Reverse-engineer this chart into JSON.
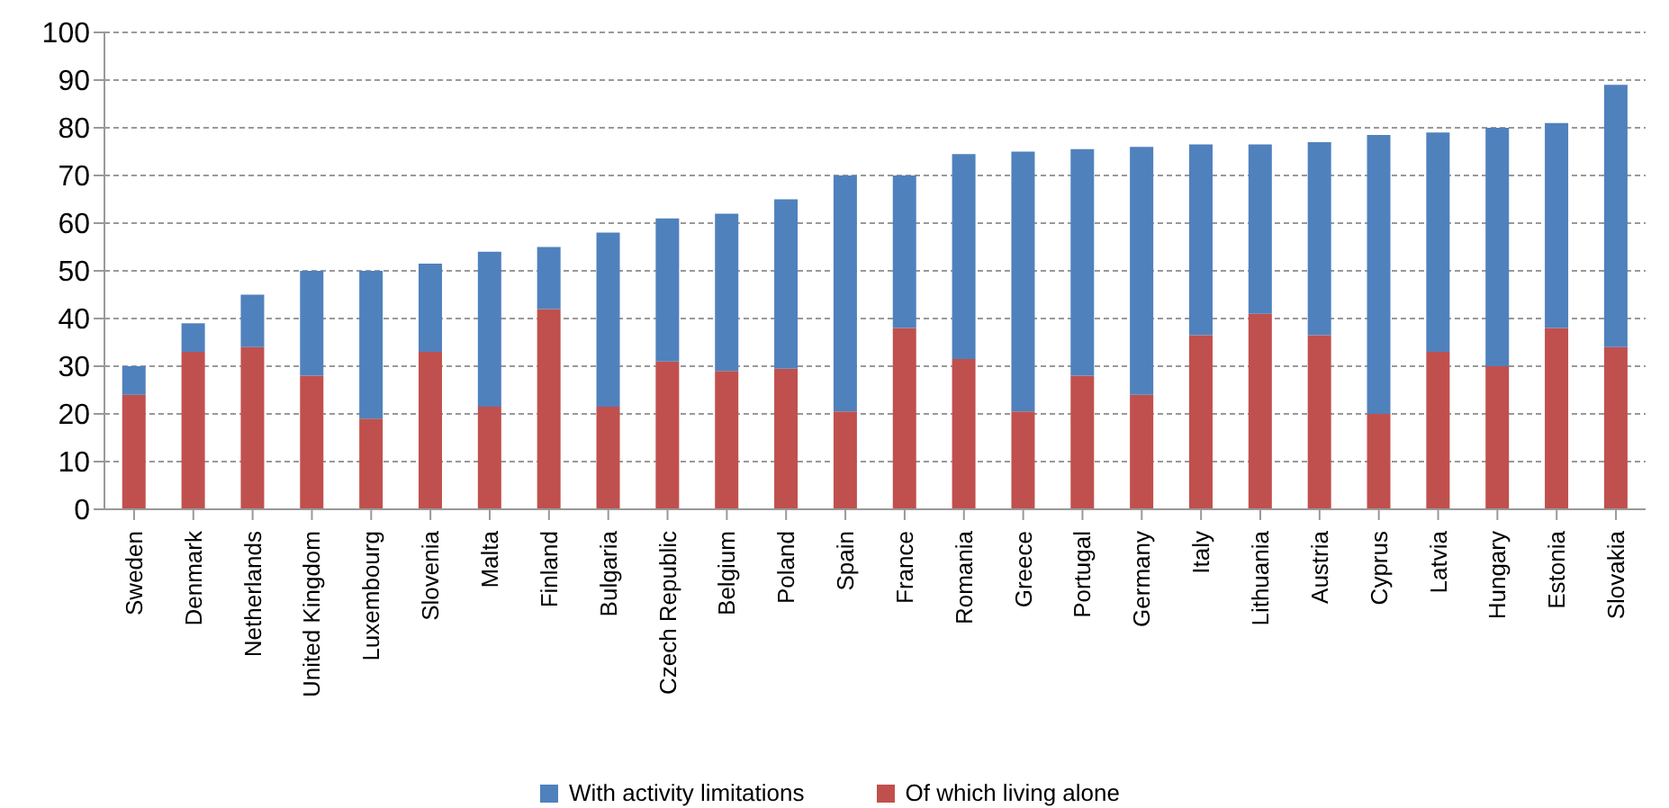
{
  "chart_data": {
    "type": "bar",
    "stacked": true,
    "categories": [
      "Sweden",
      "Denmark",
      "Netherlands",
      "United Kingdom",
      "Luxembourg",
      "Slovenia",
      "Malta",
      "Finland",
      "Bulgaria",
      "Czech Republic",
      "Belgium",
      "Poland",
      "Spain",
      "France",
      "Romania",
      "Greece",
      "Portugal",
      "Germany",
      "Italy",
      "Lithuania",
      "Austria",
      "Cyprus",
      "Latvia",
      "Hungary",
      "Estonia",
      "Slovakia"
    ],
    "series": [
      {
        "name": "Of which living alone",
        "color": "#c0504d",
        "values": [
          24,
          33,
          34,
          28,
          19,
          33,
          21.5,
          42,
          21.5,
          31,
          29,
          29.5,
          20.5,
          38,
          31.5,
          20.5,
          28,
          24,
          36.5,
          41,
          36.5,
          20,
          33,
          30,
          38,
          34
        ]
      },
      {
        "name": "With activity  limitations",
        "color": "#4f81bd",
        "values": [
          6,
          6,
          11,
          22,
          31,
          18.5,
          32.5,
          13,
          36.5,
          30,
          33,
          35.5,
          49.5,
          32,
          43,
          54.5,
          47.5,
          52,
          40,
          35.5,
          40.5,
          58.5,
          46,
          50,
          43,
          55
        ]
      }
    ],
    "ylim": [
      0,
      100
    ],
    "yticks": [
      0,
      10,
      20,
      30,
      40,
      50,
      60,
      70,
      80,
      90,
      100
    ],
    "grid": "y",
    "legend": "bottom"
  }
}
